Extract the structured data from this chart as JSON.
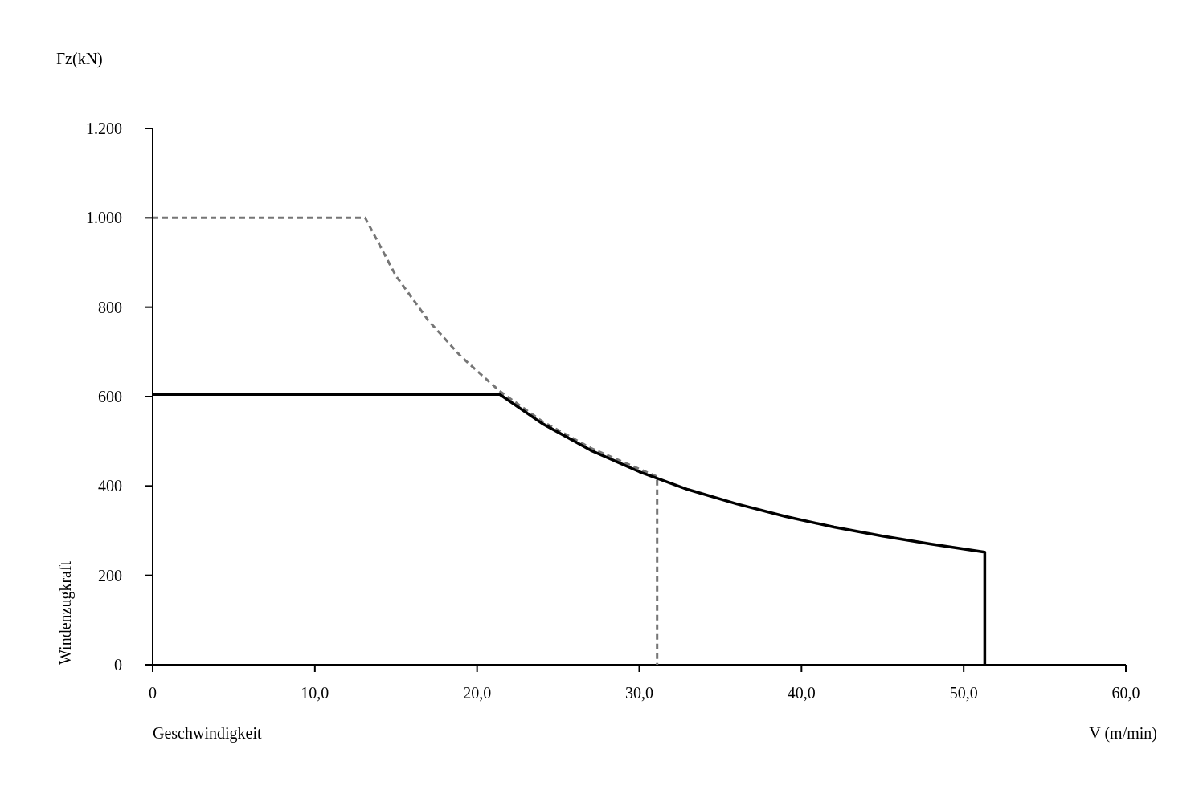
{
  "chart_data": {
    "type": "line",
    "xlabel": "V (m/min)",
    "ylabel": "Fz(kN)",
    "annotations": [
      "Geschwindigkeit",
      "Windenzugkraft"
    ],
    "xlim": [
      0,
      60
    ],
    "ylim": [
      0,
      1200
    ],
    "xticks": [
      0,
      {
        "value": 10,
        "label": "10,0"
      },
      {
        "value": 20,
        "label": "20,0"
      },
      {
        "value": 30,
        "label": "30,0"
      },
      {
        "value": 40,
        "label": "40,0"
      },
      {
        "value": 50,
        "label": "50,0"
      },
      {
        "value": 60,
        "label": "60,0"
      }
    ],
    "yticks": [
      0,
      200,
      400,
      600,
      800,
      {
        "value": 1000,
        "label": "1.000"
      },
      {
        "value": 1200,
        "label": "1.200"
      }
    ],
    "grid": false,
    "marker": "none",
    "series": [
      {
        "color": "#767676",
        "line_style": "dashed",
        "x": [
          0,
          13.1,
          15,
          17,
          19,
          21.4,
          24,
          27,
          31.1,
          31.1
        ],
        "values": [
          1000,
          1000,
          870,
          770,
          690,
          612,
          545,
          485,
          421,
          0
        ]
      },
      {
        "color": "#000000",
        "line_style": "solid",
        "x": [
          0,
          21.4,
          24,
          27,
          30,
          33,
          36,
          39,
          42,
          45,
          48,
          51.3,
          51.3
        ],
        "values": [
          605,
          605,
          540,
          480,
          432,
          392,
          360,
          332,
          308,
          288,
          270,
          252,
          0
        ]
      }
    ]
  }
}
